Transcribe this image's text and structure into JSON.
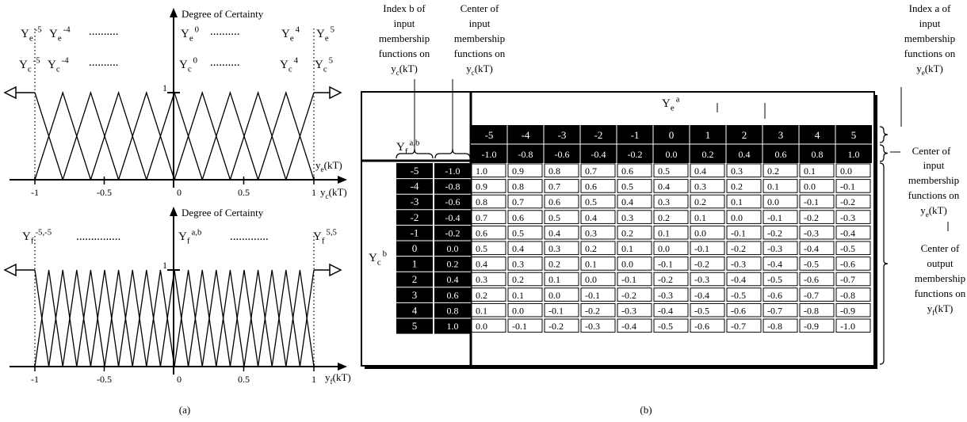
{
  "panel_a": {
    "top_plot": {
      "y_axis_label": "Degree of Certainty",
      "x_axis_label": "y_e(kT)",
      "x_axis_label_main": "y",
      "x_axis_label_sub": "e",
      "x_axis_label_tail": "(kT)",
      "x_axis_label_inner": "y_e(kT)",
      "one_label": "1",
      "x_ticks": [
        "-1",
        "-0.5",
        "0",
        "0.5",
        "1"
      ],
      "row1_labels": [
        {
          "base": "Y",
          "sub": "e",
          "sup": "-5"
        },
        {
          "base": "Y",
          "sub": "e",
          "sup": "-4"
        },
        {
          "base": "Y",
          "sub": "e",
          "sup": "0"
        },
        {
          "base": "Y",
          "sub": "e",
          "sup": "4"
        },
        {
          "base": "Y",
          "sub": "e",
          "sup": "5"
        }
      ],
      "row2_labels": [
        {
          "base": "Y",
          "sub": "c",
          "sup": "-5"
        },
        {
          "base": "Y",
          "sub": "c",
          "sup": "-4"
        },
        {
          "base": "Y",
          "sub": "c",
          "sup": "0"
        },
        {
          "base": "Y",
          "sub": "c",
          "sup": "4"
        },
        {
          "base": "Y",
          "sub": "c",
          "sup": "5"
        }
      ],
      "membership_function_count": 11
    },
    "bottom_plot": {
      "y_axis_label": "Degree of Certainty",
      "x_axis_label_main": "y",
      "x_axis_label_sub": "f",
      "x_axis_label_tail": "(kT)",
      "one_label": "1",
      "x_ticks": [
        "-1",
        "-0.5",
        "0",
        "0.5",
        "1"
      ],
      "labels": [
        {
          "base": "Y",
          "sub": "f",
          "sup": "-5,-5"
        },
        {
          "base": "Y",
          "sub": "f",
          "sup": "a,b"
        },
        {
          "base": "Y",
          "sub": "f",
          "sup": "5,5"
        }
      ],
      "membership_function_count": 21
    },
    "caption": "(a)"
  },
  "panel_b": {
    "caption": "(b)",
    "annotations": {
      "index_b": [
        "Index b of",
        "input",
        "membership",
        "functions on",
        "y_c(kT)"
      ],
      "center_c": [
        "Center of",
        "input",
        "membership",
        "functions on",
        "y_c(kT)"
      ],
      "index_a": [
        "Index a of",
        "input",
        "membership",
        "functions on",
        "y_e(kT)"
      ],
      "center_e": [
        "Center of",
        "input",
        "membership",
        "functions on",
        "y_e(kT)"
      ],
      "center_f": [
        "Center of",
        "output",
        "membership",
        "functions on",
        "y_f(kT)"
      ]
    },
    "ye_header": {
      "base": "Y",
      "sub": "e",
      "sup": "a"
    },
    "yf_header": {
      "base": "Y",
      "sub": "f",
      "sup": "a,b"
    },
    "yc_header": {
      "base": "Y",
      "sub": "c",
      "sup": "b"
    },
    "col_index": [
      "-5",
      "-4",
      "-3",
      "-2",
      "-1",
      "0",
      "1",
      "2",
      "3",
      "4",
      "5"
    ],
    "col_center": [
      "-1.0",
      "-0.8",
      "-0.6",
      "-0.4",
      "-0.2",
      "0.0",
      "0.2",
      "0.4",
      "0.6",
      "0.8",
      "1.0"
    ],
    "row_index": [
      "-5",
      "-4",
      "-3",
      "-2",
      "-1",
      "0",
      "1",
      "2",
      "3",
      "4",
      "5"
    ],
    "row_center": [
      "-1.0",
      "-0.8",
      "-0.6",
      "-0.4",
      "-0.2",
      "0.0",
      "0.2",
      "0.4",
      "0.6",
      "0.8",
      "1.0"
    ],
    "cells": [
      [
        "1.0",
        "0.9",
        "0.8",
        "0.7",
        "0.6",
        "0.5",
        "0.4",
        "0.3",
        "0.2",
        "0.1",
        "0.0"
      ],
      [
        "0.9",
        "0.8",
        "0.7",
        "0.6",
        "0.5",
        "0.4",
        "0.3",
        "0.2",
        "0.1",
        "0.0",
        "-0.1"
      ],
      [
        "0.8",
        "0.7",
        "0.6",
        "0.5",
        "0.4",
        "0.3",
        "0.2",
        "0.1",
        "0.0",
        "-0.1",
        "-0.2"
      ],
      [
        "0.7",
        "0.6",
        "0.5",
        "0.4",
        "0.3",
        "0.2",
        "0.1",
        "0.0",
        "-0.1",
        "-0.2",
        "-0.3"
      ],
      [
        "0.6",
        "0.5",
        "0.4",
        "0.3",
        "0.2",
        "0.1",
        "0.0",
        "-0.1",
        "-0.2",
        "-0.3",
        "-0.4"
      ],
      [
        "0.5",
        "0.4",
        "0.3",
        "0.2",
        "0.1",
        "0.0",
        "-0.1",
        "-0.2",
        "-0.3",
        "-0.4",
        "-0.5"
      ],
      [
        "0.4",
        "0.3",
        "0.2",
        "0.1",
        "0.0",
        "-0.1",
        "-0.2",
        "-0.3",
        "-0.4",
        "-0.5",
        "-0.6"
      ],
      [
        "0.3",
        "0.2",
        "0.1",
        "0.0",
        "-0.1",
        "-0.2",
        "-0.3",
        "-0.4",
        "-0.5",
        "-0.6",
        "-0.7"
      ],
      [
        "0.2",
        "0.1",
        "0.0",
        "-0.1",
        "-0.2",
        "-0.3",
        "-0.4",
        "-0.5",
        "-0.6",
        "-0.7",
        "-0.8"
      ],
      [
        "0.1",
        "0.0",
        "-0.1",
        "-0.2",
        "-0.3",
        "-0.4",
        "-0.5",
        "-0.6",
        "-0.7",
        "-0.8",
        "-0.9"
      ],
      [
        "0.0",
        "-0.1",
        "-0.2",
        "-0.3",
        "-0.4",
        "-0.5",
        "-0.6",
        "-0.7",
        "-0.8",
        "-0.9",
        "-1.0"
      ]
    ]
  }
}
